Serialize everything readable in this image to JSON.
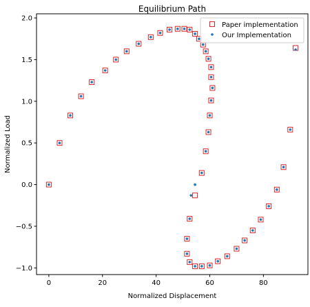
{
  "chart_data": {
    "type": "scatter",
    "title": "Equilibrium Path",
    "xlabel": "Normalized Displacement",
    "ylabel": "Normalized Load",
    "xlim": [
      -4.6,
      96.6
    ],
    "ylim": [
      -1.08,
      2.05
    ],
    "xticks": [
      0,
      20,
      40,
      60,
      80
    ],
    "yticks": [
      -1.0,
      -0.5,
      0.0,
      0.5,
      1.0,
      1.5,
      2.0
    ],
    "xtick_labels": [
      "0",
      "20",
      "40",
      "60",
      "80"
    ],
    "ytick_labels": [
      "−1.0",
      "−0.5",
      "0.0",
      "0.5",
      "1.0",
      "1.5",
      "2.0"
    ],
    "grid": false,
    "legend_position": "top-right",
    "series": [
      {
        "name": "Paper implementation",
        "marker": "open-square",
        "color": "#d62728",
        "x": [
          0,
          4,
          8,
          12,
          16,
          21,
          25,
          29,
          33.5,
          38,
          41.5,
          45,
          48,
          50.5,
          52.5,
          54.5,
          56,
          57.5,
          58.5,
          59.5,
          60.5,
          60.5,
          61,
          60.5,
          60,
          59.5,
          58.5,
          57,
          54.5,
          52.5,
          51.5,
          51.5,
          52.5,
          54.5,
          57,
          60,
          63,
          66.5,
          70,
          73,
          76,
          79,
          82,
          85,
          87.5,
          90,
          92
        ],
        "y": [
          0.0,
          0.5,
          0.83,
          1.06,
          1.23,
          1.37,
          1.5,
          1.6,
          1.69,
          1.77,
          1.82,
          1.86,
          1.87,
          1.87,
          1.86,
          1.81,
          1.75,
          1.68,
          1.6,
          1.51,
          1.41,
          1.29,
          1.16,
          1.01,
          0.83,
          0.63,
          0.4,
          0.14,
          -0.13,
          -0.41,
          -0.65,
          -0.83,
          -0.93,
          -0.98,
          -0.98,
          -0.97,
          -0.92,
          -0.86,
          -0.77,
          -0.67,
          -0.55,
          -0.42,
          -0.26,
          -0.06,
          0.21,
          0.66,
          1.64
        ]
      },
      {
        "name": "Our Implementation",
        "marker": "dot",
        "color": "#1f77b4",
        "x": [
          0,
          4,
          8,
          12,
          16,
          21,
          25,
          29,
          33.5,
          38,
          41.5,
          45,
          48,
          50.5,
          52.5,
          54.5,
          56,
          57.5,
          58.5,
          59.5,
          60.5,
          60.5,
          61,
          60.5,
          60,
          59.5,
          58.5,
          57,
          54.5,
          53,
          52.5,
          51.5,
          51.5,
          52.5,
          54.5,
          57,
          60,
          63,
          66.5,
          70,
          73,
          76,
          79,
          82,
          85,
          87.5,
          90,
          92
        ],
        "y": [
          0.0,
          0.5,
          0.83,
          1.06,
          1.23,
          1.37,
          1.5,
          1.6,
          1.69,
          1.77,
          1.82,
          1.86,
          1.87,
          1.87,
          1.86,
          1.81,
          1.75,
          1.68,
          1.6,
          1.51,
          1.41,
          1.29,
          1.16,
          1.01,
          0.83,
          0.63,
          0.4,
          0.14,
          0.0,
          -0.13,
          -0.41,
          -0.65,
          -0.83,
          -0.93,
          -0.98,
          -0.98,
          -0.97,
          -0.92,
          -0.86,
          -0.77,
          -0.67,
          -0.55,
          -0.42,
          -0.26,
          -0.06,
          0.21,
          0.66,
          1.62
        ]
      }
    ]
  }
}
